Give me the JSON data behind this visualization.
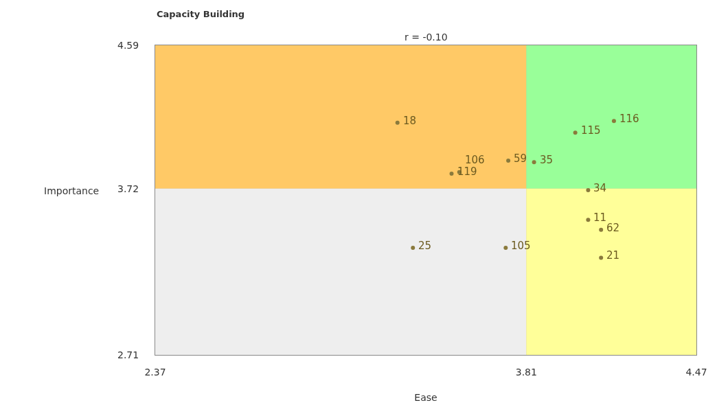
{
  "chart_data": {
    "type": "scatter",
    "title": "Capacity Building",
    "xlabel": "Ease",
    "ylabel": "Importance",
    "x": [
      3.31,
      4.15,
      4.0,
      3.74,
      3.84,
      3.52,
      3.55,
      4.05,
      4.05,
      4.1,
      3.37,
      3.73,
      4.1
    ],
    "series": [
      {
        "color": "#8a7a3c",
        "values": [
          4.12,
          4.13,
          4.06,
          3.89,
          3.88,
          3.81,
          3.82,
          3.71,
          3.53,
          3.47,
          3.36,
          3.36,
          3.3
        ]
      }
    ],
    "marker": "circle",
    "grid": false,
    "xlim": [
      2.37,
      4.47
    ],
    "ylim": [
      2.71,
      4.59
    ],
    "xticks": [
      2.37,
      3.81,
      4.47
    ],
    "yticks": [
      2.71,
      3.72,
      4.59
    ],
    "ref_lines": [
      {
        "axis": "x",
        "value": 3.81,
        "color": "#c8b89a"
      },
      {
        "axis": "y",
        "value": 3.72,
        "color": "#c8b89a"
      }
    ],
    "bands": [
      {
        "axis": "x",
        "from": 2.37,
        "to": 3.81,
        "color": "#ffc966"
      },
      {
        "axis": "x",
        "from": 3.81,
        "to": 4.47,
        "color": "#99ff99"
      },
      {
        "axis": "x",
        "from": 2.37,
        "to": 3.81,
        "color": "#eeeeee"
      },
      {
        "axis": "x",
        "from": 3.81,
        "to": 4.47,
        "color": "#ffff99"
      }
    ],
    "annotations": [
      "r = -0.10",
      {
        "text": "18",
        "x": 3.31,
        "y": 4.12
      },
      {
        "text": "116",
        "x": 4.15,
        "y": 4.13
      },
      {
        "text": "115",
        "x": 4.0,
        "y": 4.06
      },
      {
        "text": "59",
        "x": 3.74,
        "y": 3.89
      },
      {
        "text": "35",
        "x": 3.84,
        "y": 3.88
      },
      {
        "text": "119",
        "x": 3.52,
        "y": 3.81
      },
      {
        "text": "106",
        "x": 3.55,
        "y": 3.82
      },
      {
        "text": "34",
        "x": 4.05,
        "y": 3.71
      },
      {
        "text": "11",
        "x": 4.05,
        "y": 3.53
      },
      {
        "text": "62",
        "x": 4.1,
        "y": 3.47
      },
      {
        "text": "25",
        "x": 3.37,
        "y": 3.36
      },
      {
        "text": "105",
        "x": 3.73,
        "y": 3.36
      },
      {
        "text": "21",
        "x": 4.1,
        "y": 3.3
      }
    ]
  }
}
